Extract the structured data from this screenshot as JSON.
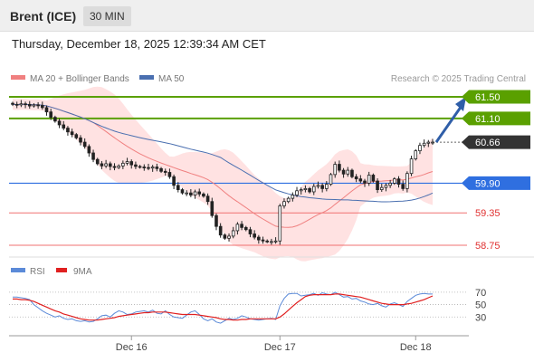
{
  "header": {
    "instrument": "Brent (ICE)",
    "timeframe": "30 MIN"
  },
  "timestamp": "Thursday, December 18, 2025 12:39:34 AM CET",
  "legend": {
    "ma20": "MA 20 + Bollinger Bands",
    "ma50": "MA 50",
    "credit": "Research © 2025 Trading Central"
  },
  "rsi_legend": {
    "rsi": "RSI",
    "ma9": "9MA"
  },
  "colors": {
    "resistance": "#5aa000",
    "support": "#f07070",
    "pivot": "#2f6fe0",
    "price": "#333333",
    "ma20": "#f08080",
    "ma50": "#4a6fb0",
    "bollinger": "#ffd8d8",
    "candle": "#222222",
    "rsi": "#5b8ad8",
    "rsi_ma": "#e02020",
    "arrow": "#2f5ea8"
  },
  "chart_data": [
    {
      "type": "candlestick",
      "ylim": [
        58.6,
        61.65
      ],
      "x_ticks": [
        "Dec 16",
        "Dec 17",
        "Dec 18"
      ],
      "levels": [
        {
          "name": "resistance",
          "value": 61.5,
          "label": "61.50"
        },
        {
          "name": "resistance",
          "value": 61.1,
          "label": "61.10"
        },
        {
          "name": "current-price",
          "value": 60.66,
          "label": "60.66"
        },
        {
          "name": "pivot",
          "value": 59.9,
          "label": "59.90"
        },
        {
          "name": "support",
          "value": 59.35,
          "label": "59.35"
        },
        {
          "name": "support",
          "value": 58.75,
          "label": "58.75"
        }
      ],
      "close": [
        61.36,
        61.35,
        61.37,
        61.36,
        61.33,
        61.35,
        61.34,
        61.3,
        61.22,
        61.12,
        61.05,
        60.98,
        60.92,
        60.85,
        60.8,
        60.74,
        60.66,
        60.58,
        60.46,
        60.34,
        60.26,
        60.22,
        60.26,
        60.21,
        60.19,
        60.22,
        60.27,
        60.3,
        60.24,
        60.21,
        60.2,
        60.19,
        60.18,
        60.2,
        60.17,
        60.12,
        60.1,
        60.02,
        59.86,
        59.78,
        59.72,
        59.72,
        59.68,
        59.74,
        59.7,
        59.66,
        59.56,
        59.3,
        59.1,
        58.94,
        58.88,
        58.92,
        59.02,
        59.14,
        59.08,
        59.04,
        58.96,
        58.9,
        58.85,
        58.83,
        58.82,
        58.82,
        58.83,
        59.48,
        59.56,
        59.62,
        59.68,
        59.76,
        59.78,
        59.8,
        59.74,
        59.84,
        59.86,
        59.8,
        59.88,
        60.06,
        60.25,
        60.14,
        60.07,
        60.14,
        60.02,
        59.98,
        59.94,
        59.9,
        60.05,
        59.94,
        59.78,
        59.82,
        59.86,
        59.9,
        59.98,
        59.88,
        59.8,
        60.08,
        60.35,
        60.5,
        60.6,
        60.64,
        60.66,
        60.66
      ],
      "rsi": {
        "ticks": [
          70,
          50,
          30
        ],
        "ylim": [
          10,
          80
        ],
        "values": [
          62,
          62,
          61,
          60,
          58,
          50,
          45,
          40,
          36,
          33,
          30,
          32,
          28,
          26,
          27,
          24,
          23,
          24,
          22,
          23,
          27,
          32,
          33,
          30,
          36,
          40,
          38,
          34,
          35,
          38,
          39,
          40,
          38,
          41,
          36,
          35,
          40,
          34,
          30,
          29,
          28,
          33,
          38,
          40,
          34,
          27,
          24,
          27,
          22,
          20,
          24,
          28,
          26,
          28,
          32,
          30,
          27,
          26,
          25,
          26,
          27,
          28,
          26,
          48,
          60,
          67,
          68,
          68,
          64,
          65,
          66,
          68,
          65,
          69,
          67,
          66,
          70,
          66,
          62,
          63,
          59,
          60,
          56,
          54,
          51,
          50,
          52,
          48,
          46,
          51,
          53,
          50,
          47,
          55,
          60,
          65,
          67,
          68,
          67,
          67
        ],
        "ma9": [
          59,
          59,
          58,
          58,
          57,
          55,
          52,
          49,
          46,
          43,
          40,
          38,
          35,
          33,
          31,
          29,
          27,
          26,
          25,
          25,
          25,
          26,
          27,
          28,
          29,
          31,
          32,
          33,
          34,
          35,
          36,
          37,
          37,
          38,
          38,
          38,
          38,
          37,
          36,
          35,
          34,
          34,
          34,
          34,
          33,
          32,
          31,
          30,
          29,
          27,
          26,
          26,
          25,
          25,
          26,
          26,
          27,
          27,
          27,
          27,
          27,
          27,
          27,
          30,
          35,
          41,
          47,
          53,
          58,
          63,
          65,
          66,
          66,
          66,
          66,
          66,
          67,
          67,
          66,
          65,
          64,
          63,
          62,
          60,
          58,
          56,
          54,
          52,
          51,
          50,
          50,
          50,
          50,
          51,
          52,
          54,
          56,
          58,
          61,
          64
        ]
      }
    }
  ]
}
